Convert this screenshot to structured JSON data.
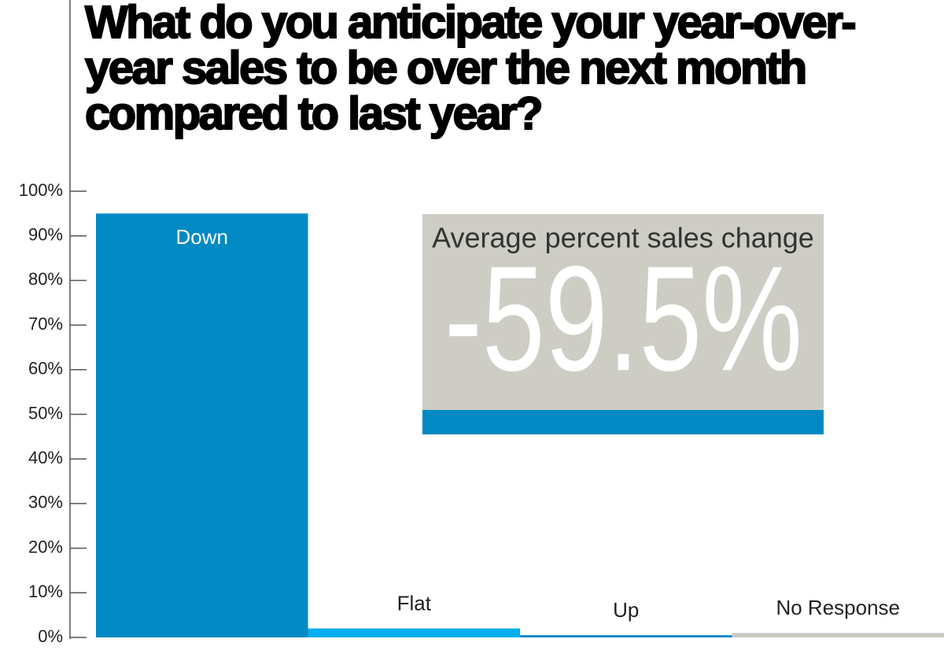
{
  "chart_data": {
    "type": "bar",
    "title": "What do you anticipate your year-over-year sales to be over the next month compared to last year?",
    "categories": [
      "Down",
      "Flat",
      "Up",
      "No Response"
    ],
    "values": [
      95,
      2,
      0.5,
      1
    ],
    "colors": [
      "#0089c2",
      "#00aeef",
      "#0089c2",
      "#c9c9c1"
    ],
    "ylim": [
      0,
      100
    ],
    "yticks": [
      {
        "value": 0,
        "label": "0%"
      },
      {
        "value": 10,
        "label": "10%"
      },
      {
        "value": 20,
        "label": "20%"
      },
      {
        "value": 30,
        "label": "30%"
      },
      {
        "value": 40,
        "label": "40%"
      },
      {
        "value": 50,
        "label": "50%"
      },
      {
        "value": 60,
        "label": "60%"
      },
      {
        "value": 70,
        "label": "70%"
      },
      {
        "value": 80,
        "label": "80%"
      },
      {
        "value": 90,
        "label": "90%"
      },
      {
        "value": 100,
        "label": "100%"
      }
    ],
    "annotation": {
      "title": "Average percent sales change",
      "text": "-59.5%"
    }
  }
}
